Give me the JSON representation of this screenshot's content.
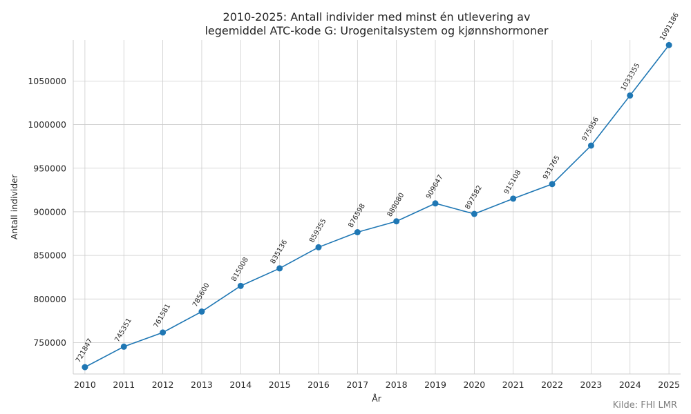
{
  "chart_data": {
    "type": "line",
    "title_line1": "2010-2025: Antall individer med minst én utlevering av",
    "title_line2": "legemiddel ATC-kode G: Urogenitalsystem og kjønnshormoner",
    "xlabel": "År",
    "ylabel": "Antall individer",
    "x": [
      2010,
      2011,
      2012,
      2013,
      2014,
      2015,
      2016,
      2017,
      2018,
      2019,
      2020,
      2021,
      2022,
      2023,
      2024,
      2025
    ],
    "values": [
      721847,
      745351,
      761581,
      785600,
      815008,
      835136,
      859355,
      876598,
      889080,
      909647,
      897582,
      915108,
      931765,
      975956,
      1033355,
      1091186
    ],
    "y_ticks": [
      750000,
      800000,
      850000,
      900000,
      950000,
      1000000,
      1050000
    ],
    "ylim": [
      714000,
      1097000
    ],
    "xlim": [
      2009.7,
      2025.3
    ],
    "grid": true,
    "line_color": "#1f77b4",
    "source": "Kilde: FHI LMR"
  }
}
